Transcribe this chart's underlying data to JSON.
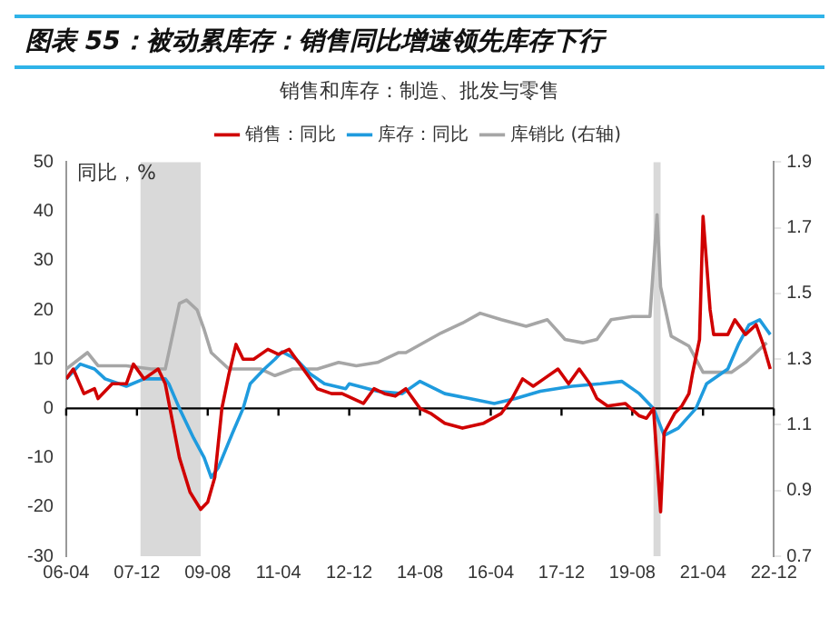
{
  "chart_data": {
    "type": "line",
    "title": "图表 55：被动累库存：销售同比增速领先库存下行",
    "subtitle": "销售和库存：制造、批发与零售",
    "ylabel": "同比，%",
    "xlim": [
      "2006-04",
      "2022-12"
    ],
    "xticks": [
      {
        "value": "2006-04",
        "label": "06-04"
      },
      {
        "value": "2007-12",
        "label": "07-12"
      },
      {
        "value": "2009-08",
        "label": "09-08"
      },
      {
        "value": "2011-04",
        "label": "11-04"
      },
      {
        "value": "2012-12",
        "label": "12-12"
      },
      {
        "value": "2014-08",
        "label": "14-08"
      },
      {
        "value": "2016-04",
        "label": "16-04"
      },
      {
        "value": "2017-12",
        "label": "17-12"
      },
      {
        "value": "2019-08",
        "label": "19-08"
      },
      {
        "value": "2021-04",
        "label": "21-04"
      },
      {
        "value": "2022-12",
        "label": "22-12"
      }
    ],
    "ylim": [
      -30,
      50
    ],
    "yticks": [
      -30,
      -20,
      -10,
      0,
      10,
      20,
      30,
      40,
      50
    ],
    "y2lim": [
      0.7,
      1.9
    ],
    "y2ticks": [
      0.7,
      0.9,
      1.1,
      1.3,
      1.5,
      1.7,
      1.9
    ],
    "grid": false,
    "legend": "top",
    "marker": "none",
    "line_style": "solid",
    "ref_lines": [
      {
        "axis": "y",
        "value": 0,
        "color": "#000000"
      }
    ],
    "bands": [
      {
        "axis": "x",
        "from": "2008-01",
        "to": "2009-06",
        "color": "#d9d9d9"
      },
      {
        "axis": "x",
        "from": "2020-02",
        "to": "2020-04",
        "color": "#d9d9d9"
      }
    ],
    "series": [
      {
        "name": "销售：同比",
        "color": "#d00000",
        "x": [
          "2006-04",
          "2006-06",
          "2006-09",
          "2006-12",
          "2007-01",
          "2007-05",
          "2007-09",
          "2007-11",
          "2008-02",
          "2008-06",
          "2008-08",
          "2008-12",
          "2009-03",
          "2009-06",
          "2009-08",
          "2009-10",
          "2009-12",
          "2010-02",
          "2010-04",
          "2010-06",
          "2010-09",
          "2011-01",
          "2011-04",
          "2011-07",
          "2011-11",
          "2012-03",
          "2012-07",
          "2012-10",
          "2013-04",
          "2013-07",
          "2013-10",
          "2014-01",
          "2014-04",
          "2014-08",
          "2014-11",
          "2015-03",
          "2015-08",
          "2016-02",
          "2016-07",
          "2016-10",
          "2017-01",
          "2017-04",
          "2017-07",
          "2017-11",
          "2018-02",
          "2018-05",
          "2018-08",
          "2018-10",
          "2019-01",
          "2019-06",
          "2019-10",
          "2019-12",
          "2020-02",
          "2020-04",
          "2020-05",
          "2020-08",
          "2020-10",
          "2020-12",
          "2021-01",
          "2021-03",
          "2021-04",
          "2021-06",
          "2021-07",
          "2021-11",
          "2022-01",
          "2022-04",
          "2022-07",
          "2022-09",
          "2022-11"
        ],
        "values": [
          6,
          8,
          3,
          4,
          2,
          5,
          5,
          9,
          6,
          8,
          5,
          -10,
          -17,
          -20.5,
          -19,
          -14,
          0,
          7,
          13,
          10,
          10,
          12,
          11,
          12,
          8,
          4,
          3,
          3,
          1,
          4,
          3,
          2.5,
          4,
          0,
          -1,
          -3,
          -4,
          -3,
          -1,
          2,
          6,
          4.5,
          6,
          8,
          5,
          8,
          5,
          2,
          0.5,
          1,
          -1.5,
          -2,
          0,
          -21,
          -5,
          -1,
          0.5,
          3,
          7,
          14,
          39,
          20,
          15,
          15,
          18,
          15,
          17,
          13,
          8
        ]
      },
      {
        "name": "库存：同比",
        "color": "#1f9bde",
        "x": [
          "2006-04",
          "2006-08",
          "2006-12",
          "2007-03",
          "2007-09",
          "2008-02",
          "2008-08",
          "2008-09",
          "2008-12",
          "2009-04",
          "2009-07",
          "2009-09",
          "2009-11",
          "2010-03",
          "2010-06",
          "2010-08",
          "2010-12",
          "2011-03",
          "2011-05",
          "2011-09",
          "2012-01",
          "2012-05",
          "2012-11",
          "2012-12",
          "2013-08",
          "2014-03",
          "2014-08",
          "2015-03",
          "2015-10",
          "2016-05",
          "2016-11",
          "2017-06",
          "2018-03",
          "2018-11",
          "2019-05",
          "2019-10",
          "2020-02",
          "2020-05",
          "2020-09",
          "2021-02",
          "2021-05",
          "2021-11",
          "2022-02",
          "2022-05",
          "2022-08",
          "2022-10",
          "2022-11"
        ],
        "values": [
          6,
          9,
          8,
          6,
          4.5,
          6,
          6,
          5,
          0,
          -6,
          -10,
          -14,
          -12,
          -5,
          0,
          5,
          8,
          10,
          11.5,
          10,
          7,
          5,
          4,
          5,
          3.5,
          3,
          5.5,
          3,
          2,
          1,
          2,
          3.5,
          4.5,
          5,
          5.5,
          3,
          0,
          -5.5,
          -4,
          0,
          5,
          8,
          13,
          17,
          18,
          16,
          15
        ]
      },
      {
        "name": "库销比 (右轴)",
        "color": "#a6a6a6",
        "axis": "y2",
        "x": [
          "2006-04",
          "2006-10",
          "2007-01",
          "2007-09",
          "2008-04",
          "2008-08",
          "2008-10",
          "2008-12",
          "2009-02",
          "2009-05",
          "2009-07",
          "2009-09",
          "2010-02",
          "2010-06",
          "2010-11",
          "2011-03",
          "2011-08",
          "2012-03",
          "2012-09",
          "2013-02",
          "2013-08",
          "2014-02",
          "2014-04",
          "2015-02",
          "2015-08",
          "2016-01",
          "2016-07",
          "2017-02",
          "2017-08",
          "2018-01",
          "2018-06",
          "2018-10",
          "2019-02",
          "2019-08",
          "2020-01",
          "2020-03",
          "2020-04",
          "2020-07",
          "2020-12",
          "2021-04",
          "2021-07",
          "2021-12",
          "2022-04",
          "2022-07",
          "2022-10"
        ],
        "values": [
          1.27,
          1.32,
          1.28,
          1.28,
          1.27,
          1.27,
          1.37,
          1.47,
          1.48,
          1.45,
          1.39,
          1.32,
          1.27,
          1.27,
          1.27,
          1.25,
          1.27,
          1.27,
          1.29,
          1.28,
          1.29,
          1.32,
          1.32,
          1.38,
          1.41,
          1.44,
          1.42,
          1.4,
          1.42,
          1.36,
          1.35,
          1.36,
          1.42,
          1.43,
          1.43,
          1.74,
          1.52,
          1.37,
          1.34,
          1.26,
          1.26,
          1.26,
          1.29,
          1.32,
          1.35
        ]
      }
    ]
  }
}
